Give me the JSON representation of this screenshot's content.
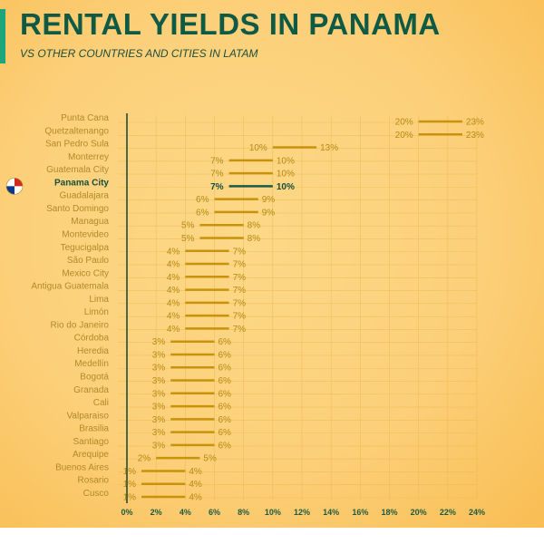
{
  "title": "RENTAL YIELDS IN PANAMA",
  "subtitle": "VS OTHER COUNTRIES AND CITIES IN LATAM",
  "colors": {
    "bar": "#c8930a",
    "highlight": "#1a5a48",
    "title": "#0f5a44",
    "accent": "#1ba67c"
  },
  "flag_icon": "panama-flag-icon",
  "chart_data": {
    "type": "range-bar",
    "title": "RENTAL YIELDS IN PANAMA",
    "subtitle": "VS OTHER COUNTRIES AND CITIES IN LATAM",
    "xlim": [
      0,
      24
    ],
    "x_ticks": [
      "0%",
      "2%",
      "4%",
      "6%",
      "8%",
      "10%",
      "12%",
      "14%",
      "16%",
      "18%",
      "20%",
      "22%",
      "24%"
    ],
    "grid": true,
    "highlight": "Panama City",
    "rows": [
      {
        "city": "Punta Cana",
        "min": 20,
        "max": 23,
        "min_label": "20%",
        "max_label": "23%"
      },
      {
        "city": "Quetzaltenango",
        "min": 20,
        "max": 23,
        "min_label": "20%",
        "max_label": "23%"
      },
      {
        "city": "San Pedro Sula",
        "min": 10,
        "max": 13,
        "min_label": "10%",
        "max_label": "13%"
      },
      {
        "city": "Monterrey",
        "min": 7,
        "max": 10,
        "min_label": "7%",
        "max_label": "10%"
      },
      {
        "city": "Guatemala City",
        "min": 7,
        "max": 10,
        "min_label": "7%",
        "max_label": "10%"
      },
      {
        "city": "Panama City",
        "min": 7,
        "max": 10,
        "min_label": "7%",
        "max_label": "10%"
      },
      {
        "city": "Guadalajara",
        "min": 6,
        "max": 9,
        "min_label": "6%",
        "max_label": "9%"
      },
      {
        "city": "Santo Domingo",
        "min": 6,
        "max": 9,
        "min_label": "6%",
        "max_label": "9%"
      },
      {
        "city": "Managua",
        "min": 5,
        "max": 8,
        "min_label": "5%",
        "max_label": "8%"
      },
      {
        "city": "Montevideo",
        "min": 5,
        "max": 8,
        "min_label": "5%",
        "max_label": "8%"
      },
      {
        "city": "Tegucigalpa",
        "min": 4,
        "max": 7,
        "min_label": "4%",
        "max_label": "7%"
      },
      {
        "city": "São Paulo",
        "min": 4,
        "max": 7,
        "min_label": "4%",
        "max_label": "7%"
      },
      {
        "city": "Mexico City",
        "min": 4,
        "max": 7,
        "min_label": "4%",
        "max_label": "7%"
      },
      {
        "city": "Antigua Guatemala",
        "min": 4,
        "max": 7,
        "min_label": "4%",
        "max_label": "7%"
      },
      {
        "city": "Lima",
        "min": 4,
        "max": 7,
        "min_label": "4%",
        "max_label": "7%"
      },
      {
        "city": "Limón",
        "min": 4,
        "max": 7,
        "min_label": "4%",
        "max_label": "7%"
      },
      {
        "city": "Rio do Janeiro",
        "min": 4,
        "max": 7,
        "min_label": "4%",
        "max_label": "7%"
      },
      {
        "city": "Córdoba",
        "min": 3,
        "max": 6,
        "min_label": "3%",
        "max_label": "6%"
      },
      {
        "city": "Heredia",
        "min": 3,
        "max": 6,
        "min_label": "3%",
        "max_label": "6%"
      },
      {
        "city": "Medellín",
        "min": 3,
        "max": 6,
        "min_label": "3%",
        "max_label": "6%"
      },
      {
        "city": "Bogotá",
        "min": 3,
        "max": 6,
        "min_label": "3%",
        "max_label": "6%"
      },
      {
        "city": "Granada",
        "min": 3,
        "max": 6,
        "min_label": "3%",
        "max_label": "6%"
      },
      {
        "city": "Cali",
        "min": 3,
        "max": 6,
        "min_label": "3%",
        "max_label": "6%"
      },
      {
        "city": "Valparaiso",
        "min": 3,
        "max": 6,
        "min_label": "3%",
        "max_label": "6%"
      },
      {
        "city": "Brasilia",
        "min": 3,
        "max": 6,
        "min_label": "3%",
        "max_label": "6%"
      },
      {
        "city": "Santiago",
        "min": 3,
        "max": 6,
        "min_label": "3%",
        "max_label": "6%"
      },
      {
        "city": "Arequipe",
        "min": 2,
        "max": 5,
        "min_label": "2%",
        "max_label": "5%"
      },
      {
        "city": "Buenos Aires",
        "min": 1,
        "max": 4,
        "min_label": "1%",
        "max_label": "4%"
      },
      {
        "city": "Rosario",
        "min": 1,
        "max": 4,
        "min_label": "1%",
        "max_label": "4%"
      },
      {
        "city": "Cusco",
        "min": 1,
        "max": 4,
        "min_label": "1%",
        "max_label": "4%"
      }
    ]
  }
}
